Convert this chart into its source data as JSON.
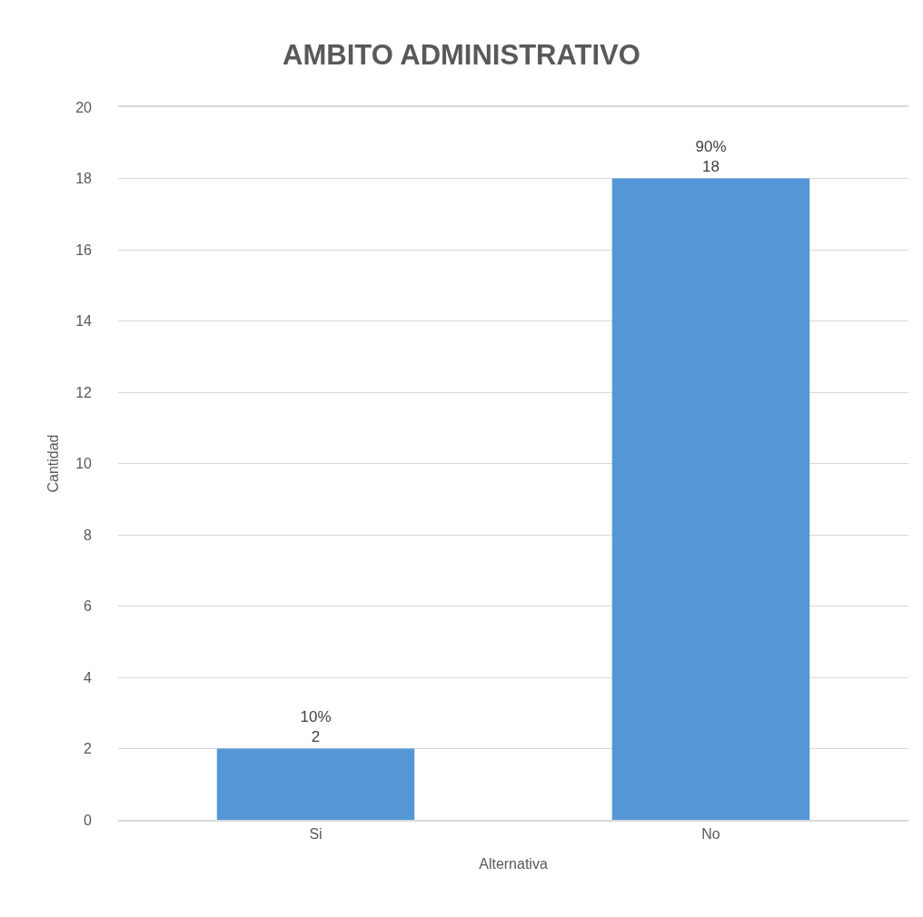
{
  "chart_data": {
    "type": "bar",
    "title": "AMBITO ADMINISTRATIVO",
    "xlabel": "Alternativa",
    "ylabel": "Cantidad",
    "categories": [
      "Si",
      "No"
    ],
    "values": [
      2,
      18
    ],
    "color": "#5597d6",
    "value_labels": [
      "10%\n2",
      "90%\n18"
    ],
    "ylim": [
      0,
      20
    ],
    "yticks": [
      0,
      2,
      4,
      6,
      8,
      10,
      12,
      14,
      16,
      18,
      20
    ],
    "grid": "y"
  }
}
